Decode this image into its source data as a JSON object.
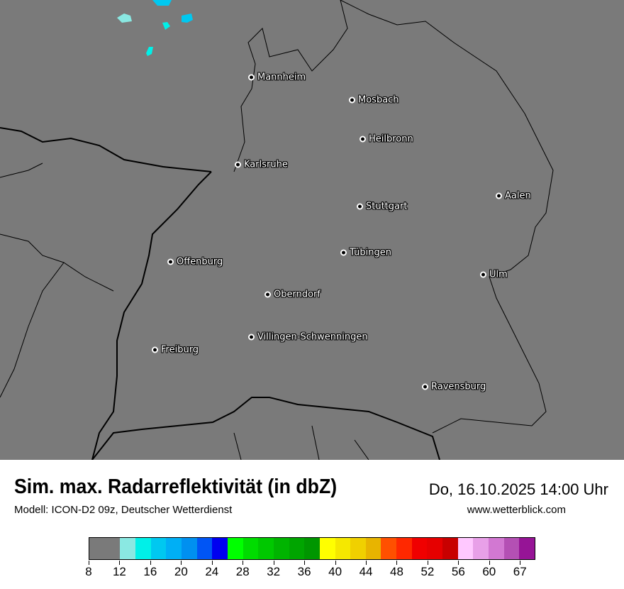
{
  "header": {
    "title": "Sim. max. Radarreflektivität (in dbZ)",
    "datetime": "Do, 16.10.2025 14:00 Uhr",
    "model": "Modell: ICON-D2 09z, Deutscher Wetterdienst",
    "website": "www.wetterblick.com"
  },
  "map": {
    "background_color": "#7a7a7a",
    "cities": [
      "Mannheim",
      "Mosbach",
      "Heilbronn",
      "Karlsruhe",
      "Aalen",
      "Stuttgart",
      "Tübingen",
      "Offenburg",
      "Ulm",
      "Oberndorf",
      "Villingen-Schwenningen",
      "Freiburg",
      "Ravensburg"
    ]
  },
  "legend": {
    "unit": "dbZ",
    "colors": [
      "#7a7a7a",
      "#8ae8e2",
      "#00f0e8",
      "#00c8f0",
      "#00aff5",
      "#0090f0",
      "#0055f5",
      "#0000f0",
      "#00ff00",
      "#00dc00",
      "#00c800",
      "#00b400",
      "#00a500",
      "#009600",
      "#ffff00",
      "#f5e800",
      "#f0d000",
      "#e8b400",
      "#ff5000",
      "#ff2800",
      "#f00000",
      "#e60000",
      "#c80000",
      "#ffc8ff",
      "#e8a0e8",
      "#d278d2",
      "#b450b4",
      "#961496"
    ],
    "tick_labels": [
      "8",
      "12",
      "16",
      "20",
      "24",
      "28",
      "32",
      "36",
      "40",
      "44",
      "48",
      "52",
      "56",
      "60",
      "67"
    ]
  }
}
